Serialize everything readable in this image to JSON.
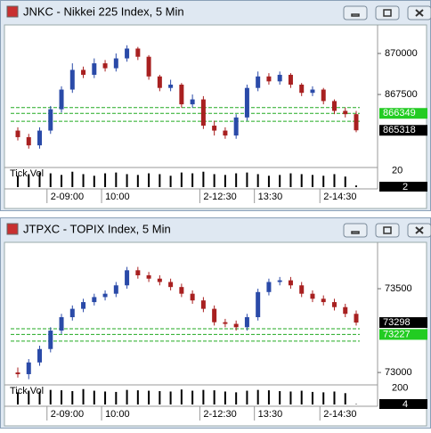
{
  "chart_data": [
    {
      "type": "candlestick",
      "title": "JNKC - Nikkei 225 Index, 5 Min",
      "categories": [
        null,
        null,
        null,
        "2-09:00",
        null,
        null,
        null,
        null,
        "10:00",
        null,
        null,
        null,
        null,
        null,
        null,
        null,
        null,
        "2-12:30",
        null,
        null,
        null,
        null,
        "13:30",
        null,
        null,
        null,
        null,
        null,
        "2-14:30",
        null,
        null,
        null
      ],
      "open": [
        865300,
        864900,
        864400,
        865300,
        866600,
        867800,
        869000,
        868700,
        869400,
        869100,
        869700,
        870300,
        869800,
        868600,
        867900,
        868100,
        866900,
        867200,
        865600,
        865300,
        865000,
        866100,
        867900,
        868600,
        868300,
        868700,
        868100,
        867600,
        867800,
        867100,
        866500,
        866300
      ],
      "high": [
        865500,
        865100,
        865500,
        866800,
        868000,
        869400,
        869200,
        869700,
        869600,
        870000,
        870500,
        870400,
        869900,
        868700,
        868400,
        868200,
        867500,
        867400,
        865900,
        865500,
        866300,
        868100,
        868900,
        868800,
        868900,
        868800,
        868200,
        868000,
        867900,
        867200,
        866700,
        866500
      ],
      "low": [
        864700,
        864200,
        864200,
        865100,
        866400,
        867600,
        868500,
        868500,
        868900,
        868900,
        869500,
        869600,
        868400,
        867700,
        867700,
        866700,
        866700,
        865400,
        865000,
        864800,
        864800,
        865900,
        867700,
        868100,
        868100,
        867900,
        867400,
        867400,
        866900,
        866300,
        866100,
        865200
      ],
      "close": [
        864900,
        864400,
        865300,
        866600,
        867800,
        869000,
        868700,
        869400,
        869100,
        869700,
        870300,
        869800,
        868600,
        867900,
        868100,
        866900,
        867200,
        865600,
        865300,
        865000,
        866100,
        867900,
        868600,
        868300,
        868700,
        868100,
        867600,
        867800,
        867100,
        866500,
        866300,
        865318
      ],
      "up_color": "#2a4aa8",
      "down_color": "#a82020",
      "ylim": [
        863050,
        871630
      ],
      "yticks": [
        867500,
        870000
      ],
      "levels": [
        866700,
        866349,
        865870
      ],
      "level_color": "#22aa22",
      "markers": [
        {
          "value": 866349,
          "color": "#22cc22"
        },
        {
          "value": 865318,
          "color": "#000000"
        }
      ],
      "volume": {
        "label": "Tick Vol",
        "values": [
          14,
          16,
          18,
          17,
          15,
          19,
          16,
          14,
          17,
          18,
          16,
          15,
          17,
          16,
          14,
          18,
          17,
          19,
          16,
          15,
          17,
          18,
          16,
          14,
          15,
          17,
          16,
          15,
          14,
          16,
          13,
          2
        ],
        "ylim": [
          0,
          22
        ],
        "yticks": [
          20
        ]
      }
    },
    {
      "type": "candlestick",
      "title": "JTPXC - TOPIX Index, 5 Min",
      "categories": [
        null,
        null,
        null,
        "2-09:00",
        null,
        null,
        null,
        null,
        "10:00",
        null,
        null,
        null,
        null,
        null,
        null,
        null,
        null,
        "2-12:30",
        null,
        null,
        null,
        null,
        "13:30",
        null,
        null,
        null,
        null,
        null,
        "2-14:30",
        null,
        null,
        null
      ],
      "open": [
        73000,
        72990,
        73060,
        73140,
        73250,
        73330,
        73380,
        73420,
        73450,
        73470,
        73520,
        73610,
        73580,
        73560,
        73540,
        73510,
        73470,
        73430,
        73380,
        73300,
        73290,
        73270,
        73330,
        73480,
        73540,
        73550,
        73520,
        73470,
        73440,
        73420,
        73390,
        73350
      ],
      "high": [
        73030,
        73080,
        73160,
        73270,
        73350,
        73400,
        73440,
        73470,
        73490,
        73540,
        73630,
        73630,
        73600,
        73580,
        73560,
        73530,
        73490,
        73450,
        73400,
        73320,
        73310,
        73350,
        73500,
        73560,
        73570,
        73570,
        73540,
        73490,
        73460,
        73440,
        73410,
        73370
      ],
      "low": [
        72970,
        72960,
        73040,
        73120,
        73230,
        73310,
        73360,
        73400,
        73430,
        73450,
        73500,
        73560,
        73540,
        73520,
        73490,
        73450,
        73410,
        73360,
        73280,
        73270,
        73250,
        73250,
        73310,
        73460,
        73520,
        73500,
        73450,
        73420,
        73400,
        73370,
        73330,
        73280
      ],
      "close": [
        72990,
        73060,
        73140,
        73250,
        73330,
        73380,
        73420,
        73450,
        73470,
        73520,
        73610,
        73580,
        73560,
        73540,
        73510,
        73470,
        73430,
        73380,
        73300,
        73290,
        73270,
        73330,
        73480,
        73540,
        73550,
        73520,
        73470,
        73440,
        73420,
        73390,
        73350,
        73298
      ],
      "up_color": "#2a4aa8",
      "down_color": "#a82020",
      "ylim": [
        72926,
        73766
      ],
      "yticks": [
        73000,
        73500
      ],
      "levels": [
        73261,
        73227,
        73187
      ],
      "level_color": "#22aa22",
      "markers": [
        {
          "value": 73298,
          "color": "#000000"
        },
        {
          "value": 73227,
          "color": "#22cc22"
        }
      ],
      "volume": {
        "label": "Tick Vol",
        "values": [
          150,
          170,
          160,
          180,
          175,
          165,
          190,
          170,
          160,
          155,
          180,
          175,
          170,
          165,
          160,
          185,
          170,
          180,
          175,
          160,
          150,
          170,
          180,
          175,
          165,
          160,
          170,
          155,
          150,
          160,
          140,
          4
        ],
        "ylim": [
          0,
          220
        ],
        "yticks": [
          200
        ]
      }
    }
  ]
}
